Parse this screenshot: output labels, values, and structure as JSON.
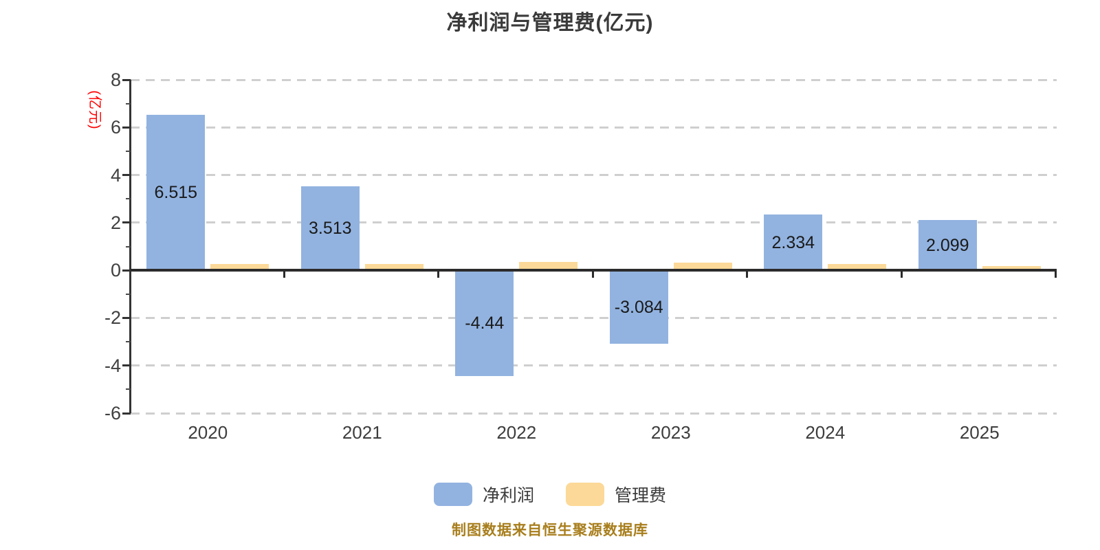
{
  "title": "净利润与管理费(亿元)",
  "y_unit_label": "(亿元)",
  "footer": "制图数据来自恒生聚源数据库",
  "legend": [
    {
      "label": "净利润",
      "color": "#92b3e0"
    },
    {
      "label": "管理费",
      "color": "#fcd998"
    }
  ],
  "colors": {
    "bar_blue": "#92b3e0",
    "bar_yellow": "#fcd998",
    "grid": "#cfcfcf",
    "axis": "#2b2b2b",
    "title_text": "#3a3a3a",
    "tick_text": "#404040",
    "unit_label_red": "#ff0000",
    "footer_gold": "#a87e1c"
  },
  "chart_data": {
    "type": "bar",
    "categories": [
      "2020",
      "2021",
      "2022",
      "2023",
      "2024",
      "2025"
    ],
    "series": [
      {
        "name": "净利润",
        "color": "#92b3e0",
        "values": [
          6.515,
          3.513,
          -4.44,
          -3.084,
          2.334,
          2.099
        ],
        "labels": [
          "6.515",
          "3.513",
          "-4.44",
          "-3.084",
          "2.334",
          "2.099"
        ]
      },
      {
        "name": "管理费",
        "color": "#fcd998",
        "values": [
          0.25,
          0.25,
          0.36,
          0.33,
          0.25,
          0.18
        ],
        "labels": [
          "",
          "",
          "",
          "",
          "",
          ""
        ]
      }
    ],
    "title": "净利润与管理费(亿元)",
    "xlabel": "",
    "ylabel": "(亿元)",
    "ylim": [
      -6,
      8
    ],
    "yticks": [
      8,
      6,
      4,
      2,
      0,
      -2,
      -4,
      -6
    ],
    "minor_yticks": [
      7,
      5,
      3,
      1,
      -1,
      -3,
      -5
    ],
    "grid": "horizontal-dashed",
    "legend_position": "bottom",
    "value_labels_series": "净利润"
  }
}
